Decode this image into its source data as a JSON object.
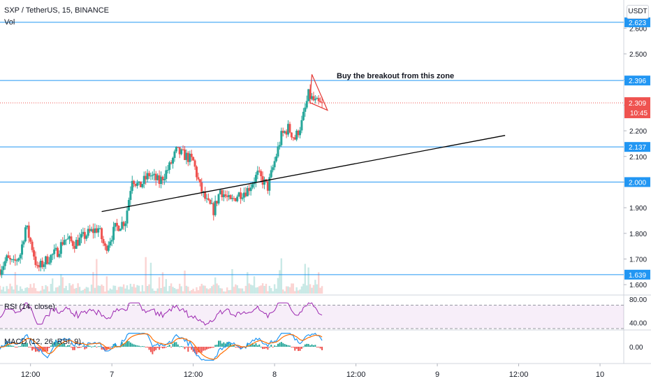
{
  "header": {
    "symbol_line": "SXP / TetherUS, 15, BINANCE",
    "vol_label": "Vol",
    "currency_button": "USDT"
  },
  "annotation": {
    "text": "Buy the breakout from this zone"
  },
  "colors": {
    "up": "#26a69a",
    "down": "#ef5350",
    "hline": "#2196f3",
    "trend": "#000000",
    "triangle": "#e53935",
    "rsi": "#9c27b0",
    "macd": "#2196f3",
    "signal": "#ff6d00"
  },
  "chart_data": {
    "type": "candlestick",
    "price_axis": {
      "ylim": [
        1.565,
        2.71
      ],
      "ticks": [
        "2.600",
        "2.500",
        "2.400",
        "2.300",
        "2.200",
        "2.100",
        "2.000",
        "1.900",
        "1.800",
        "1.700",
        "1.600"
      ],
      "tick_values": [
        2.6,
        2.5,
        2.4,
        2.3,
        2.2,
        2.1,
        2.0,
        1.9,
        1.8,
        1.7,
        1.6
      ]
    },
    "time_axis": {
      "labels": [
        "12:00",
        "7",
        "12:00",
        "8",
        "12:00",
        "9",
        "12:00",
        "10"
      ],
      "hours": [
        12,
        24,
        36,
        48,
        60,
        72,
        84,
        96
      ],
      "xlim_hours": [
        7.5,
        99.5
      ]
    },
    "horizontal_levels": [
      {
        "value": 2.623,
        "label": "2.623"
      },
      {
        "value": 2.396,
        "label": "2.396"
      },
      {
        "value": 2.137,
        "label": "2.137"
      },
      {
        "value": 2.0,
        "label": "2.000"
      },
      {
        "value": 1.639,
        "label": "1.639"
      }
    ],
    "last_price": {
      "value": 2.309,
      "label": "2.309",
      "countdown": "10:45"
    },
    "trendline": {
      "from": {
        "hour": 22.5,
        "price": 1.885
      },
      "to": {
        "hour": 82.0,
        "price": 2.182
      }
    },
    "triangle": {
      "points": [
        {
          "hour": 53.5,
          "price": 2.42
        },
        {
          "hour": 55.8,
          "price": 2.28
        },
        {
          "hour": 53.2,
          "price": 2.31
        }
      ]
    },
    "path": [
      {
        "h": 7.5,
        "p": 1.66
      },
      {
        "h": 8.5,
        "p": 1.7
      },
      {
        "h": 9.5,
        "p": 1.68
      },
      {
        "h": 10.5,
        "p": 1.72
      },
      {
        "h": 11.3,
        "p": 1.83
      },
      {
        "h": 12.3,
        "p": 1.74
      },
      {
        "h": 13.0,
        "p": 1.66
      },
      {
        "h": 14.5,
        "p": 1.7
      },
      {
        "h": 16.0,
        "p": 1.73
      },
      {
        "h": 17.0,
        "p": 1.78
      },
      {
        "h": 18.5,
        "p": 1.76
      },
      {
        "h": 20.5,
        "p": 1.8
      },
      {
        "h": 22.0,
        "p": 1.82
      },
      {
        "h": 23.0,
        "p": 1.74
      },
      {
        "h": 24.5,
        "p": 1.82
      },
      {
        "h": 26.0,
        "p": 1.85
      },
      {
        "h": 27.0,
        "p": 2.02
      },
      {
        "h": 28.0,
        "p": 1.98
      },
      {
        "h": 29.5,
        "p": 2.03
      },
      {
        "h": 31.0,
        "p": 2.0
      },
      {
        "h": 32.5,
        "p": 2.06
      },
      {
        "h": 33.5,
        "p": 2.12
      },
      {
        "h": 35.0,
        "p": 2.1
      },
      {
        "h": 36.0,
        "p": 2.08
      },
      {
        "h": 37.0,
        "p": 1.98
      },
      {
        "h": 38.0,
        "p": 1.92
      },
      {
        "h": 39.0,
        "p": 1.89
      },
      {
        "h": 40.0,
        "p": 1.97
      },
      {
        "h": 41.5,
        "p": 1.92
      },
      {
        "h": 42.5,
        "p": 1.95
      },
      {
        "h": 44.0,
        "p": 1.97
      },
      {
        "h": 45.5,
        "p": 2.03
      },
      {
        "h": 47.0,
        "p": 1.98
      },
      {
        "h": 48.0,
        "p": 2.08
      },
      {
        "h": 49.0,
        "p": 2.18
      },
      {
        "h": 50.0,
        "p": 2.21
      },
      {
        "h": 51.0,
        "p": 2.17
      },
      {
        "h": 52.0,
        "p": 2.23
      },
      {
        "h": 53.0,
        "p": 2.34
      },
      {
        "h": 54.0,
        "p": 2.31
      },
      {
        "h": 55.0,
        "p": 2.3
      }
    ],
    "indicators": {
      "rsi": {
        "label": "RSI (14, close)",
        "levels": [
          70,
          30
        ],
        "ylim": [
          30,
          85
        ],
        "ticks": [
          "80.00",
          "40.00"
        ],
        "tick_values": [
          80,
          40
        ]
      },
      "macd": {
        "label": "MACD (12, 26, RSI, 9)",
        "ylim": [
          -3.2,
          3.2
        ],
        "ticks": [
          "0.00"
        ],
        "tick_values": [
          0
        ]
      }
    }
  }
}
